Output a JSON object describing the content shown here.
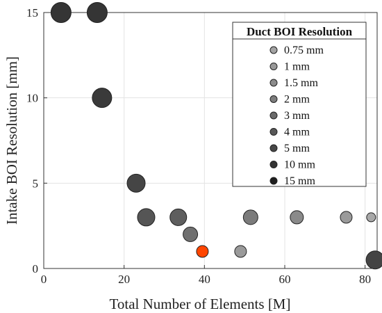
{
  "chart_data": {
    "type": "scatter",
    "xlabel": "Total Number of Elements [M]",
    "ylabel": "Intake BOI Resolution [mm]",
    "xlim": [
      0,
      83
    ],
    "ylim": [
      0,
      15
    ],
    "xticks": [
      0,
      20,
      40,
      60,
      80
    ],
    "yticks": [
      0,
      5,
      10,
      15
    ],
    "grid": true,
    "legend_title": "Duct BOI Resolution",
    "legend_position": "top-right",
    "legend": [
      {
        "label": "0.75 mm",
        "color": "#a3a3a3"
      },
      {
        "label": "1 mm",
        "color": "#999999"
      },
      {
        "label": "1.5 mm",
        "color": "#8c8c8c"
      },
      {
        "label": "2 mm",
        "color": "#7d7d7d"
      },
      {
        "label": "3 mm",
        "color": "#6a6a6a"
      },
      {
        "label": "4 mm",
        "color": "#585858"
      },
      {
        "label": "5 mm",
        "color": "#474747"
      },
      {
        "label": "10 mm",
        "color": "#333333"
      },
      {
        "label": "15 mm",
        "color": "#1e1e1e"
      }
    ],
    "points": [
      {
        "x": 4.3,
        "y": 15,
        "duct_mm": 15,
        "color": "#353535"
      },
      {
        "x": 13.3,
        "y": 15,
        "duct_mm": 15,
        "color": "#353535"
      },
      {
        "x": 14.5,
        "y": 10,
        "duct_mm": 10,
        "color": "#3a3a3a"
      },
      {
        "x": 23,
        "y": 5,
        "duct_mm": 5,
        "color": "#454545"
      },
      {
        "x": 25.5,
        "y": 3,
        "duct_mm": 4,
        "color": "#555555"
      },
      {
        "x": 33.5,
        "y": 3,
        "duct_mm": 3,
        "color": "#5e5e5e"
      },
      {
        "x": 36.5,
        "y": 2,
        "duct_mm": 2,
        "color": "#707070"
      },
      {
        "x": 39.5,
        "y": 1,
        "duct_mm": 1,
        "color": "#ff4500",
        "highlight": true
      },
      {
        "x": 49,
        "y": 1,
        "duct_mm": 1,
        "color": "#9a9a9a"
      },
      {
        "x": 51.5,
        "y": 3,
        "duct_mm": 2,
        "color": "#7b7b7b"
      },
      {
        "x": 63,
        "y": 3,
        "duct_mm": 1.5,
        "color": "#8a8a8a"
      },
      {
        "x": 75.3,
        "y": 3,
        "duct_mm": 1,
        "color": "#9a9a9a"
      },
      {
        "x": 81.5,
        "y": 3,
        "duct_mm": 0.75,
        "color": "#a8a8a8"
      },
      {
        "x": 82.5,
        "y": 0.5,
        "duct_mm": 5,
        "color": "#444444"
      }
    ]
  }
}
